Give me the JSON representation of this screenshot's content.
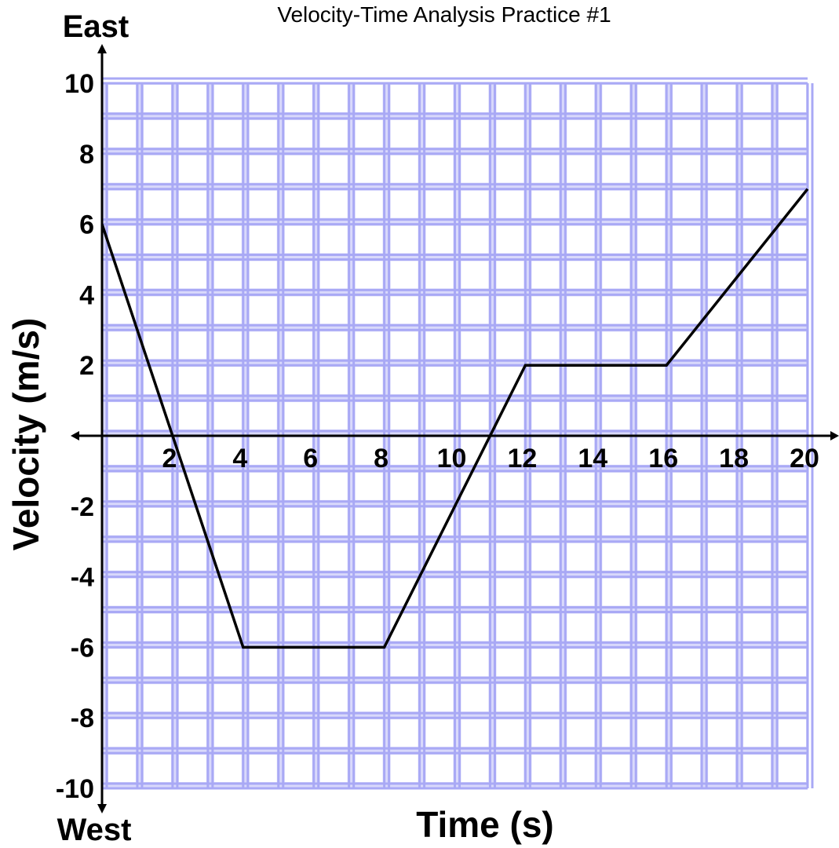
{
  "chart_data": {
    "type": "line",
    "title": "Velocity-Time Analysis Practice #1",
    "xlabel": "Time (s)",
    "ylabel": "Velocity (m/s)",
    "direction_labels": {
      "positive": "East",
      "negative": "West"
    },
    "xlim": [
      0,
      20
    ],
    "ylim": [
      -10,
      10
    ],
    "grid": true,
    "grid_color": "#a9a9f5",
    "line_color": "#000000",
    "x_tick_labels": [
      "2",
      "4",
      "6",
      "8",
      "10",
      "12",
      "14",
      "16",
      "18",
      "20"
    ],
    "y_tick_labels": [
      "10",
      "8",
      "6",
      "4",
      "2",
      "-2",
      "-4",
      "-6",
      "-8",
      "-10"
    ],
    "series": [
      {
        "x": [
          0,
          4,
          8,
          12,
          16,
          20
        ],
        "y": [
          6,
          -6,
          -6,
          2,
          2,
          7
        ]
      }
    ]
  }
}
